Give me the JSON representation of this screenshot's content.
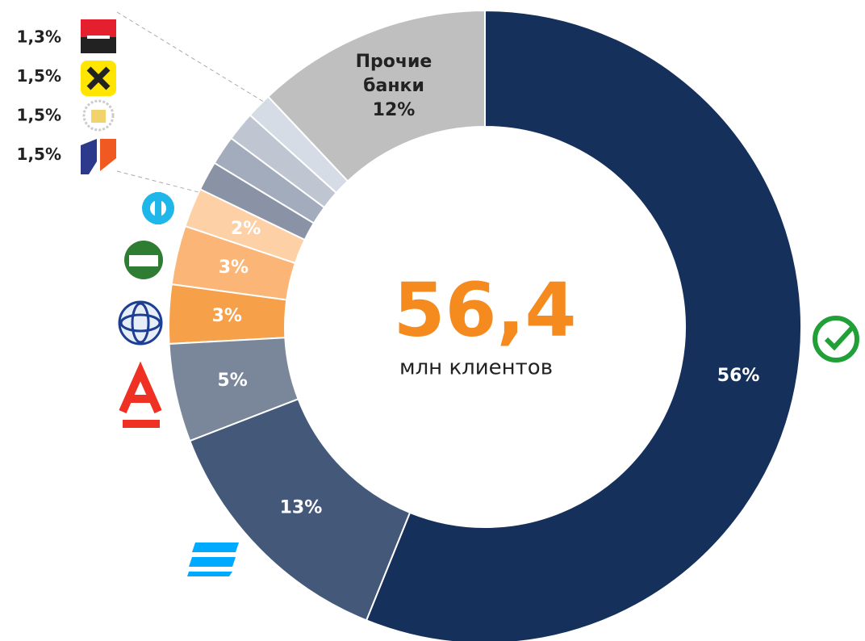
{
  "chart_data": {
    "type": "donut",
    "categories": [
      null,
      null,
      null,
      null,
      null,
      null,
      null,
      null,
      null,
      null,
      "Прочие банки"
    ],
    "values": [
      56,
      13,
      5,
      3,
      3,
      2,
      1.5,
      1.5,
      1.5,
      1.3,
      12
    ],
    "value_labels": [
      "56%",
      "13%",
      "5%",
      "3%",
      "3%",
      "2%",
      "1,5%",
      "1,5%",
      "1,5%",
      "1,3%",
      "12%"
    ],
    "colors": [
      "#15305a",
      "#44597a",
      "#7a879b",
      "#f7a04a",
      "#fbb677",
      "#fdd0a5",
      "#8a93a5",
      "#a3acbc",
      "#bfc6d2",
      "#d6dce5",
      "#bfbfbf"
    ],
    "total": {
      "value": 56.4,
      "label": "56,4"
    },
    "total_caption": "млн клиентов"
  }
}
